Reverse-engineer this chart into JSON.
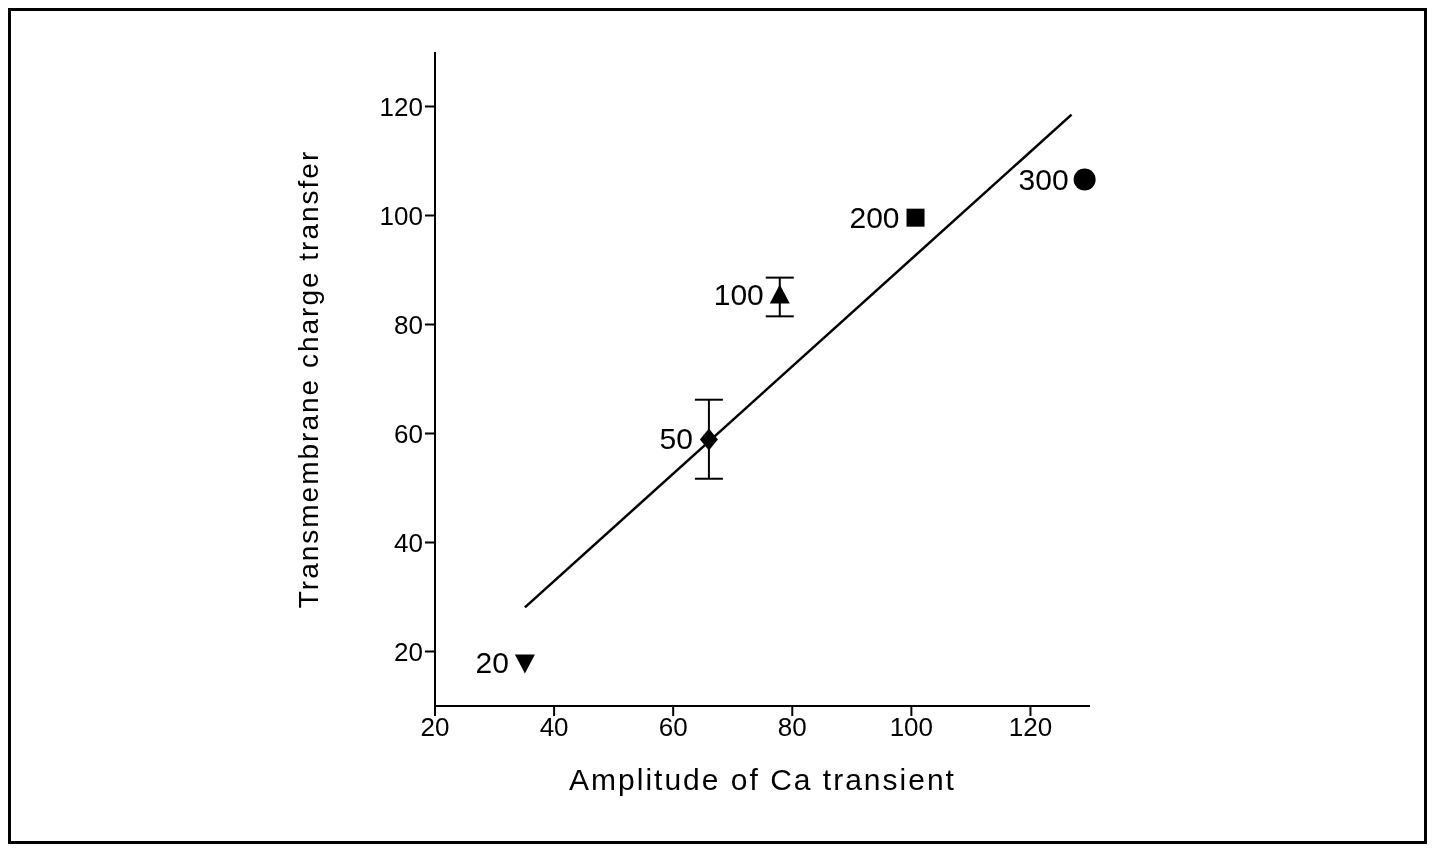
{
  "chart_data": {
    "type": "scatter",
    "xlabel": "Amplitude of Ca transient",
    "ylabel": "Transmembrane charge transfer",
    "xlim": [
      20,
      130
    ],
    "xticks": [
      20,
      40,
      60,
      80,
      100,
      120
    ],
    "ylim": [
      10,
      130
    ],
    "yticks": [
      20,
      40,
      60,
      80,
      100,
      120
    ],
    "grid": false,
    "series": [
      {
        "color": "#000000",
        "marker": "triangle-down",
        "x": [
          35.1
        ],
        "values": [
          17.8
        ]
      },
      {
        "color": "#000000",
        "marker": "diamond",
        "x": [
          66
        ],
        "values": [
          58.9
        ],
        "errors": [
          [
            51.7,
            66.2
          ]
        ]
      },
      {
        "color": "#000000",
        "marker": "triangle",
        "x": [
          77.9
        ],
        "values": [
          85.5
        ],
        "errors": [
          [
            81.5,
            88.6
          ]
        ]
      },
      {
        "color": "#000000",
        "marker": "square",
        "x": [
          100.7
        ],
        "values": [
          99.6
        ]
      },
      {
        "color": "#000000",
        "marker": "circle",
        "x": [
          129.1
        ],
        "values": [
          106.6
        ]
      },
      {
        "type": "line",
        "color": "#000000",
        "marker": "none",
        "line_style": "solid",
        "x": [
          35.1,
          126.9
        ],
        "values": [
          28.1,
          118.5
        ]
      }
    ],
    "annotations": [
      {
        "text": "20",
        "x": 35.1,
        "y": 17.8
      },
      {
        "text": "50",
        "x": 66,
        "y": 58.9
      },
      {
        "text": "100",
        "x": 77.9,
        "y": 85.5
      },
      {
        "text": "200",
        "x": 100.7,
        "y": 99.6
      },
      {
        "text": "300",
        "x": 129.1,
        "y": 106.6
      }
    ]
  }
}
